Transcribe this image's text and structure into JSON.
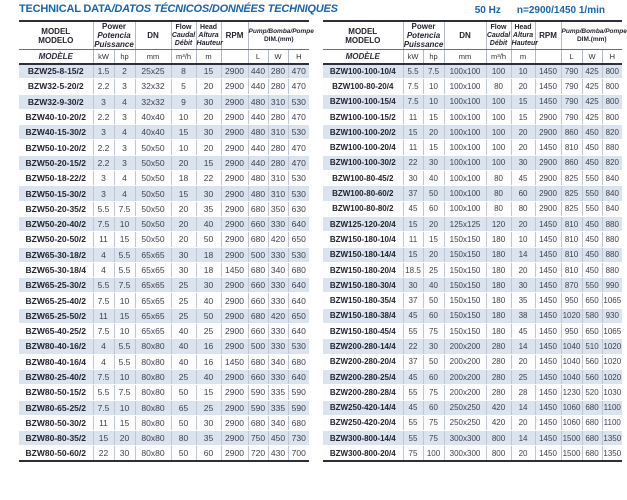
{
  "header_bar": {
    "title_main": "TECHNICAL DATA",
    "title_rest": "/DATOS TÉCNICOS/DONNÉES TECHNIQUES",
    "frequency": "50 Hz",
    "speed": "n=2900/1450 1/min"
  },
  "columns": {
    "model": [
      "MODEL",
      "MODELO",
      "MODÈLE"
    ],
    "power": [
      "Power",
      "Potencia",
      "Puissance"
    ],
    "dn": "DN",
    "flow": [
      "Flow",
      "Caudal",
      "Débit"
    ],
    "head": [
      "Head",
      "Altura",
      "Hauteur"
    ],
    "rpm": "RPM",
    "dim_title": "Pump/Bomba/Pompe",
    "dim_sub": "DIM.(mm)",
    "units": {
      "kw": "kW",
      "hp": "hp",
      "mm": "mm",
      "flow": "m³/h",
      "head": "m",
      "l": "L",
      "w": "W",
      "h": "H"
    }
  },
  "left_table": {
    "rows": [
      [
        "BZW25-8-15/2",
        "1.5",
        "2",
        "25x25",
        "8",
        "15",
        "2900",
        "440",
        "280",
        "470"
      ],
      [
        "BZW32-5-20/2",
        "2.2",
        "3",
        "32x32",
        "5",
        "20",
        "2900",
        "440",
        "280",
        "470"
      ],
      [
        "BZW32-9-30/2",
        "3",
        "4",
        "32x32",
        "9",
        "30",
        "2900",
        "480",
        "310",
        "530"
      ],
      [
        "BZW40-10-20/2",
        "2.2",
        "3",
        "40x40",
        "10",
        "20",
        "2900",
        "440",
        "280",
        "470"
      ],
      [
        "BZW40-15-30/2",
        "3",
        "4",
        "40x40",
        "15",
        "30",
        "2900",
        "480",
        "310",
        "530"
      ],
      [
        "BZW50-10-20/2",
        "2.2",
        "3",
        "50x50",
        "10",
        "20",
        "2900",
        "440",
        "280",
        "470"
      ],
      [
        "BZW50-20-15/2",
        "2.2",
        "3",
        "50x50",
        "20",
        "15",
        "2900",
        "440",
        "280",
        "470"
      ],
      [
        "BZW50-18-22/2",
        "3",
        "4",
        "50x50",
        "18",
        "22",
        "2900",
        "480",
        "310",
        "530"
      ],
      [
        "BZW50-15-30/2",
        "3",
        "4",
        "50x50",
        "15",
        "30",
        "2900",
        "480",
        "310",
        "530"
      ],
      [
        "BZW50-20-35/2",
        "5.5",
        "7.5",
        "50x50",
        "20",
        "35",
        "2900",
        "680",
        "350",
        "630"
      ],
      [
        "BZW50-20-40/2",
        "7.5",
        "10",
        "50x50",
        "20",
        "40",
        "2900",
        "660",
        "330",
        "640"
      ],
      [
        "BZW50-20-50/2",
        "11",
        "15",
        "50x50",
        "20",
        "50",
        "2900",
        "680",
        "420",
        "650"
      ],
      [
        "BZW65-30-18/2",
        "4",
        "5.5",
        "65x65",
        "30",
        "18",
        "2900",
        "500",
        "330",
        "530"
      ],
      [
        "BZW65-30-18/4",
        "4",
        "5.5",
        "65x65",
        "30",
        "18",
        "1450",
        "680",
        "340",
        "680"
      ],
      [
        "BZW65-25-30/2",
        "5.5",
        "7.5",
        "65x65",
        "25",
        "30",
        "2900",
        "660",
        "330",
        "640"
      ],
      [
        "BZW65-25-40/2",
        "7.5",
        "10",
        "65x65",
        "25",
        "40",
        "2900",
        "660",
        "330",
        "640"
      ],
      [
        "BZW65-25-50/2",
        "11",
        "15",
        "65x65",
        "25",
        "50",
        "2900",
        "680",
        "420",
        "650"
      ],
      [
        "BZW65-40-25/2",
        "7.5",
        "10",
        "65x65",
        "40",
        "25",
        "2900",
        "660",
        "330",
        "640"
      ],
      [
        "BZW80-40-16/2",
        "4",
        "5.5",
        "80x80",
        "40",
        "16",
        "2900",
        "500",
        "330",
        "530"
      ],
      [
        "BZW80-40-16/4",
        "4",
        "5.5",
        "80x80",
        "40",
        "16",
        "1450",
        "680",
        "340",
        "680"
      ],
      [
        "BZW80-25-40/2",
        "7.5",
        "10",
        "80x80",
        "25",
        "40",
        "2900",
        "660",
        "330",
        "640"
      ],
      [
        "BZW80-50-15/2",
        "5.5",
        "7.5",
        "80x80",
        "50",
        "15",
        "2900",
        "590",
        "335",
        "590"
      ],
      [
        "BZW80-65-25/2",
        "7.5",
        "10",
        "80x80",
        "65",
        "25",
        "2900",
        "590",
        "335",
        "590"
      ],
      [
        "BZW80-50-30/2",
        "11",
        "15",
        "80x80",
        "50",
        "30",
        "2900",
        "680",
        "340",
        "680"
      ],
      [
        "BZW80-80-35/2",
        "15",
        "20",
        "80x80",
        "80",
        "35",
        "2900",
        "750",
        "450",
        "730"
      ],
      [
        "BZW80-50-60/2",
        "22",
        "30",
        "80x80",
        "50",
        "60",
        "2900",
        "720",
        "430",
        "700"
      ]
    ]
  },
  "right_table": {
    "rows": [
      [
        "BZW100-100-10/4",
        "5.5",
        "7.5",
        "100x100",
        "100",
        "10",
        "1450",
        "790",
        "425",
        "800"
      ],
      [
        "BZW100-80-20/4",
        "7.5",
        "10",
        "100x100",
        "80",
        "20",
        "1450",
        "790",
        "425",
        "800"
      ],
      [
        "BZW100-100-15/4",
        "7.5",
        "10",
        "100x100",
        "100",
        "15",
        "1450",
        "790",
        "425",
        "800"
      ],
      [
        "BZW100-100-15/2",
        "11",
        "15",
        "100x100",
        "100",
        "15",
        "2900",
        "790",
        "425",
        "800"
      ],
      [
        "BZW100-100-20/2",
        "15",
        "20",
        "100x100",
        "100",
        "20",
        "2900",
        "860",
        "450",
        "820"
      ],
      [
        "BZW100-100-20/4",
        "11",
        "15",
        "100x100",
        "100",
        "20",
        "1450",
        "810",
        "450",
        "880"
      ],
      [
        "BZW100-100-30/2",
        "22",
        "30",
        "100x100",
        "100",
        "30",
        "2900",
        "860",
        "450",
        "820"
      ],
      [
        "BZW100-80-45/2",
        "30",
        "40",
        "100x100",
        "80",
        "45",
        "2900",
        "825",
        "550",
        "840"
      ],
      [
        "BZW100-80-60/2",
        "37",
        "50",
        "100x100",
        "80",
        "60",
        "2900",
        "825",
        "550",
        "840"
      ],
      [
        "BZW100-80-80/2",
        "45",
        "60",
        "100x100",
        "80",
        "80",
        "2900",
        "825",
        "550",
        "840"
      ],
      [
        "BZW125-120-20/4",
        "15",
        "20",
        "125x125",
        "120",
        "20",
        "1450",
        "810",
        "450",
        "880"
      ],
      [
        "BZW150-180-10/4",
        "11",
        "15",
        "150x150",
        "180",
        "10",
        "1450",
        "810",
        "450",
        "880"
      ],
      [
        "BZW150-180-14/4",
        "15",
        "20",
        "150x150",
        "180",
        "14",
        "1450",
        "810",
        "450",
        "880"
      ],
      [
        "BZW150-180-20/4",
        "18.5",
        "25",
        "150x150",
        "180",
        "20",
        "1450",
        "810",
        "450",
        "880"
      ],
      [
        "BZW150-180-30/4",
        "30",
        "40",
        "150x150",
        "180",
        "30",
        "1450",
        "870",
        "550",
        "990"
      ],
      [
        "BZW150-180-35/4",
        "37",
        "50",
        "150x150",
        "180",
        "35",
        "1450",
        "950",
        "650",
        "1065"
      ],
      [
        "BZW150-180-38/4",
        "45",
        "60",
        "150x150",
        "180",
        "38",
        "1450",
        "1020",
        "580",
        "930"
      ],
      [
        "BZW150-180-45/4",
        "55",
        "75",
        "150x150",
        "180",
        "45",
        "1450",
        "950",
        "650",
        "1065"
      ],
      [
        "BZW200-280-14/4",
        "22",
        "30",
        "200x200",
        "280",
        "14",
        "1450",
        "1040",
        "510",
        "1020"
      ],
      [
        "BZW200-280-20/4",
        "37",
        "50",
        "200x200",
        "280",
        "20",
        "1450",
        "1040",
        "560",
        "1020"
      ],
      [
        "BZW200-280-25/4",
        "45",
        "60",
        "200x200",
        "280",
        "25",
        "1450",
        "1040",
        "560",
        "1020"
      ],
      [
        "BZW200-280-28/4",
        "55",
        "75",
        "200x200",
        "280",
        "28",
        "1450",
        "1230",
        "520",
        "1030"
      ],
      [
        "BZW250-420-14/4",
        "45",
        "60",
        "250x250",
        "420",
        "14",
        "1450",
        "1060",
        "680",
        "1100"
      ],
      [
        "BZW250-420-20/4",
        "55",
        "75",
        "250x250",
        "420",
        "20",
        "1450",
        "1060",
        "680",
        "1100"
      ],
      [
        "BZW300-800-14/4",
        "55",
        "75",
        "300x300",
        "800",
        "14",
        "1450",
        "1500",
        "680",
        "1350"
      ],
      [
        "BZW300-800-20/4",
        "75",
        "100",
        "300x300",
        "800",
        "20",
        "1450",
        "1500",
        "680",
        "1350"
      ]
    ]
  },
  "colors": {
    "accent": "#1566ad",
    "row_alt": "#dbe3ee",
    "line_dark": "#2e2e3c"
  }
}
